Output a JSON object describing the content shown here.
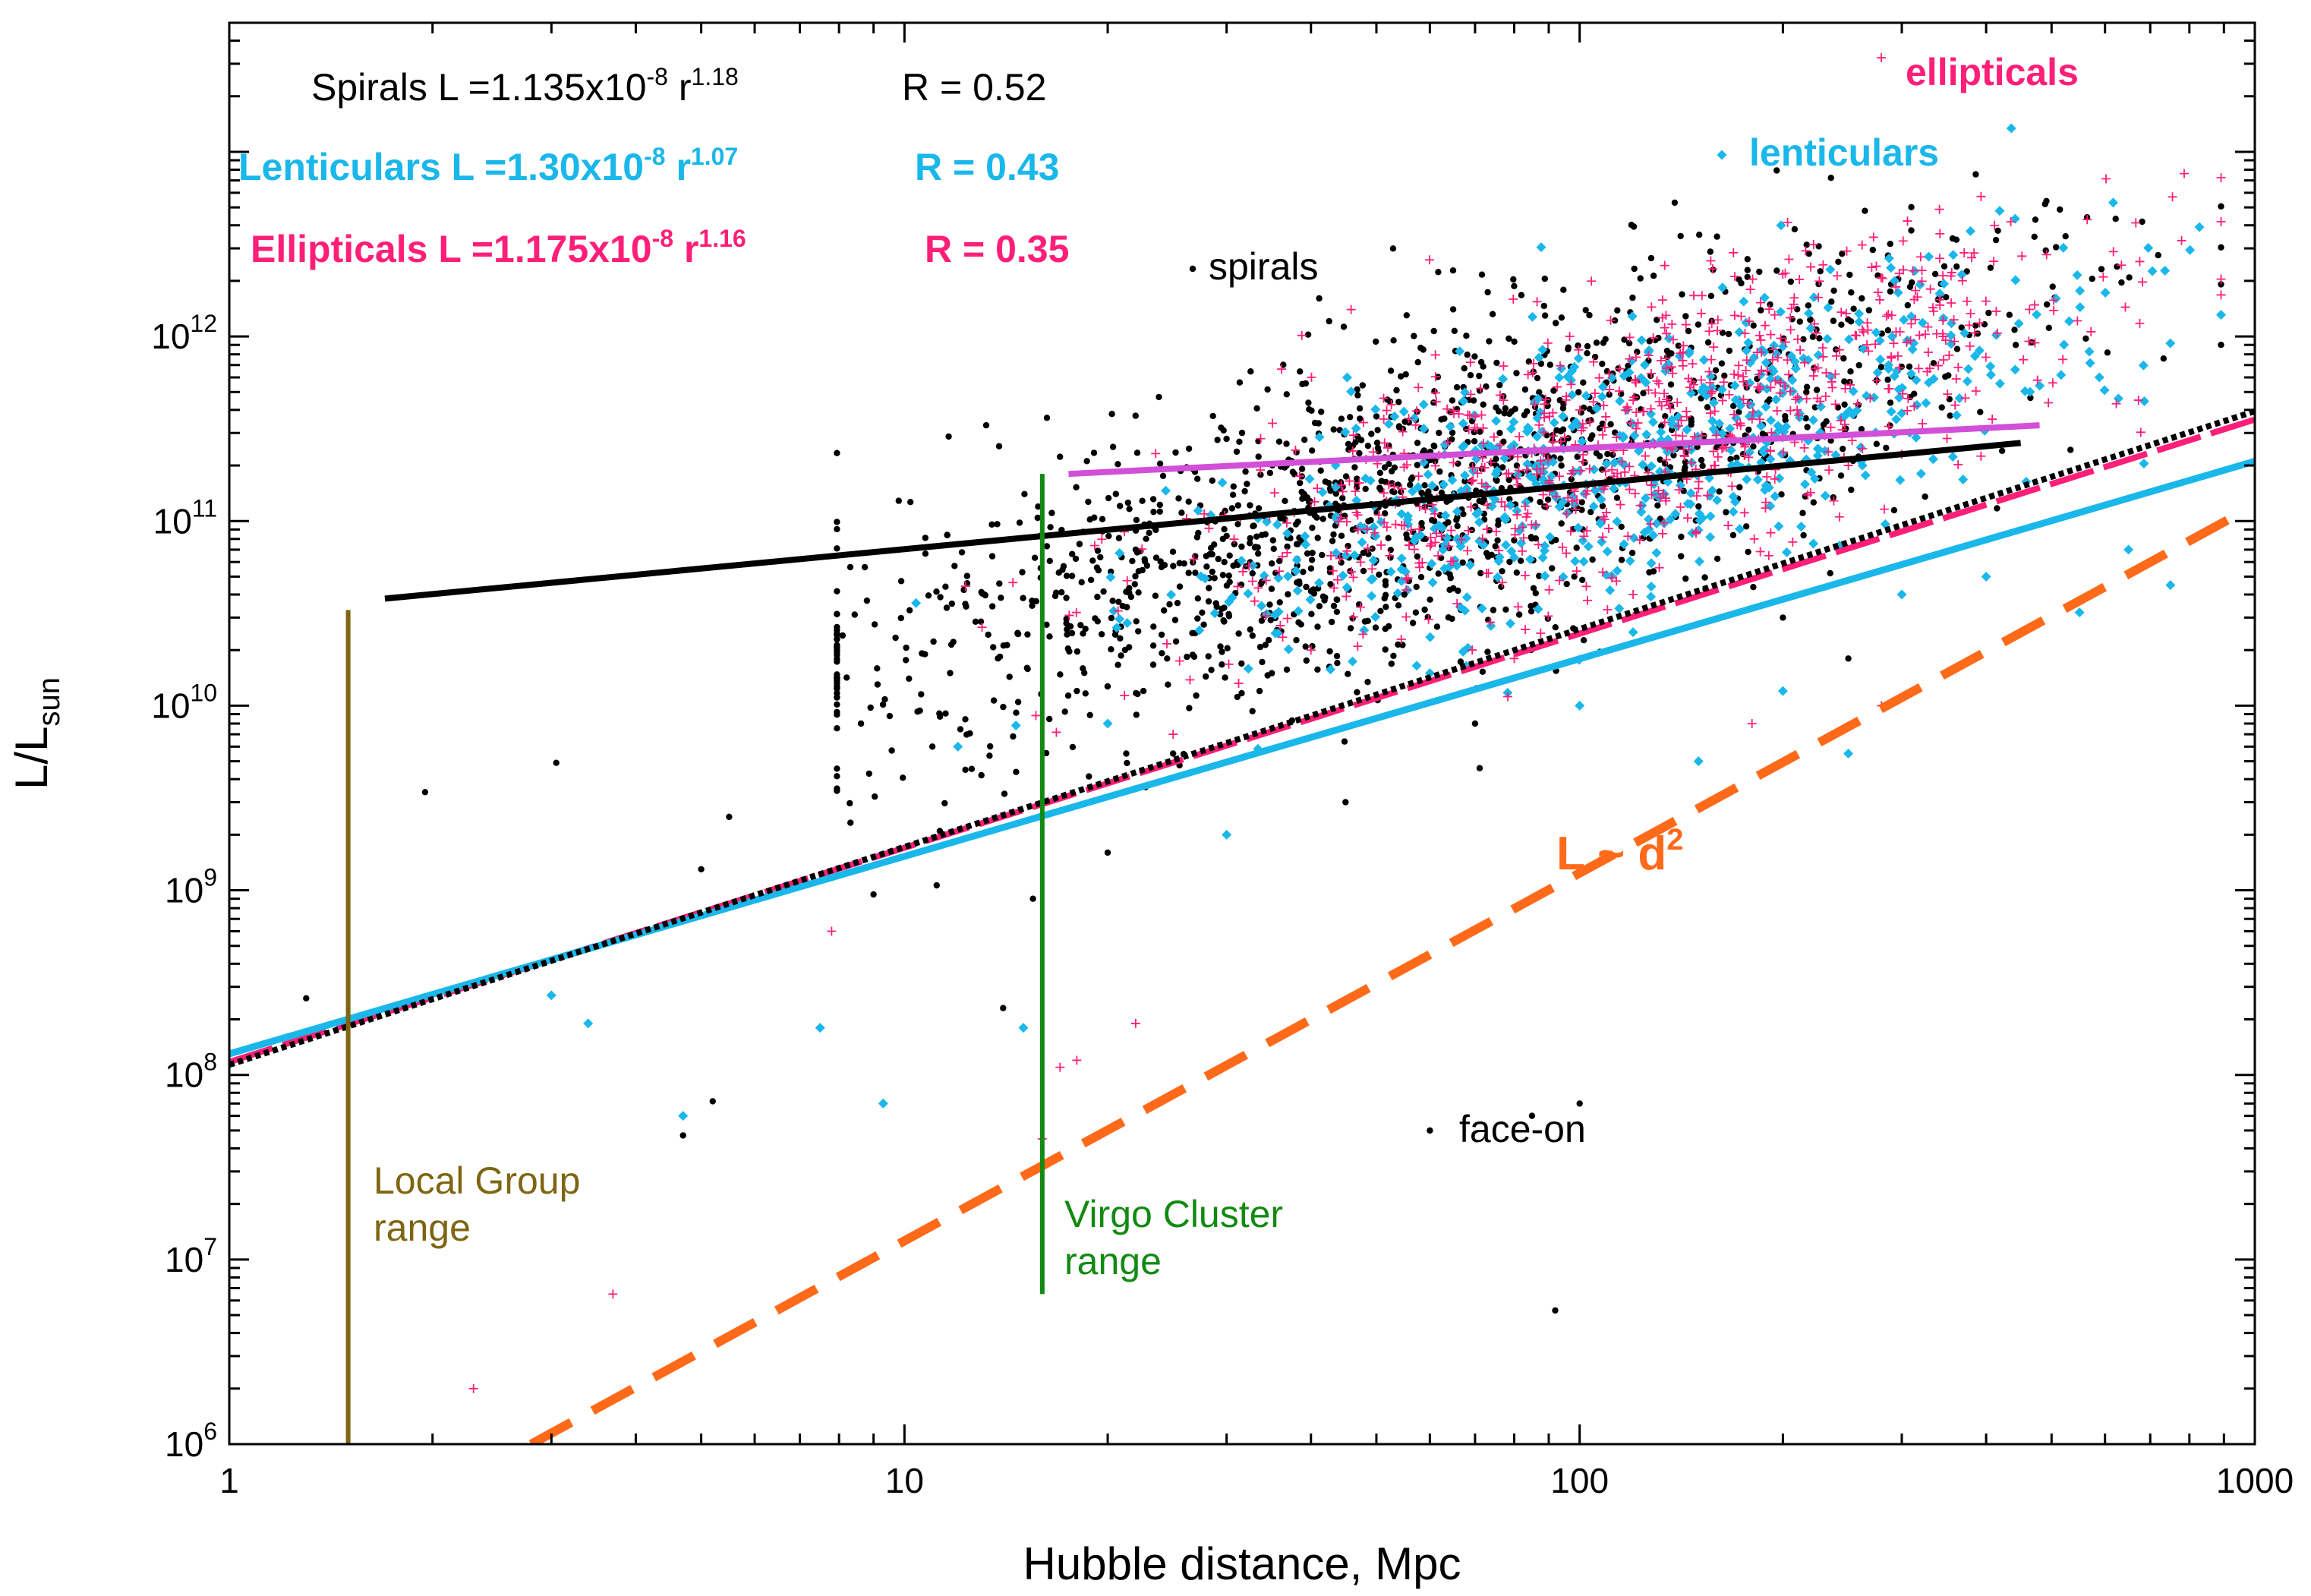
{
  "chart_data": {
    "type": "scatter",
    "x_scale": "log",
    "y_scale": "log",
    "xlim": [
      1,
      1000
    ],
    "ylim": [
      1000000,
      50000000000000
    ],
    "xlabel": "Hubble distance, Mpc",
    "ylabel": {
      "main": "L/L",
      "sub": "sun"
    },
    "x_ticks": [
      {
        "value": 1,
        "label": "1"
      },
      {
        "value": 10,
        "label": "10"
      },
      {
        "value": 100,
        "label": "100"
      },
      {
        "value": 1000,
        "label": "1000"
      }
    ],
    "y_ticks": [
      {
        "value": 1000000,
        "base": "10",
        "exp": "6"
      },
      {
        "value": 10000000,
        "base": "10",
        "exp": "7"
      },
      {
        "value": 100000000,
        "base": "10",
        "exp": "8"
      },
      {
        "value": 1000000000,
        "base": "10",
        "exp": "9"
      },
      {
        "value": 10000000000,
        "base": "10",
        "exp": "10"
      },
      {
        "value": 100000000000,
        "base": "10",
        "exp": "11"
      },
      {
        "value": 1000000000000,
        "base": "10",
        "exp": "12"
      }
    ],
    "fits": [
      {
        "name": "Spirals",
        "label_pre": "Spirals L =1.135x10",
        "label_exp1": "-8",
        "label_mid": " r",
        "label_exp2": "1.18",
        "r_text": "R = 0.52",
        "a": 1.135e-08,
        "b": 1.18,
        "color": "#000000",
        "dash": "7,5",
        "width": 8
      },
      {
        "name": "Lenticulars",
        "label_pre": "Lenticulars L =1.30x10",
        "label_exp1": "-8",
        "label_mid": " r",
        "label_exp2": "1.07",
        "r_text": "R = 0.43",
        "a": 1.3e-08,
        "b": 1.07,
        "color": "#1ab7ea",
        "dash": "",
        "width": 9
      },
      {
        "name": "Ellipticals",
        "label_pre": "Ellipticals L =1.175x10",
        "label_exp1": "-8",
        "label_mid": " r",
        "label_exp2": "1.16",
        "r_text": "R = 0.35",
        "a": 1.175e-08,
        "b": 1.16,
        "color": "#ff1f78",
        "dash": "60,14",
        "width": 8
      }
    ],
    "reference_line": {
      "label": "L ~ d",
      "label_sup": "2",
      "points": [
        [
          2.8,
          1000000
        ],
        [
          950,
          110000000000
        ]
      ],
      "color": "#ff6a1a"
    },
    "upper_limits": [
      {
        "name": "spirals",
        "points": [
          [
            1.7,
            38000000000
          ],
          [
            450,
            265000000000
          ]
        ],
        "color": "#000000"
      },
      {
        "name": "ellipticals",
        "points": [
          [
            17.5,
            180000000000
          ],
          [
            480,
            330000000000
          ]
        ],
        "color": "#d24fd8"
      }
    ],
    "markers": [
      {
        "name": "Local Group",
        "label_lines": [
          "Local Group",
          "range"
        ],
        "x": 1.5,
        "y_range": [
          1000000,
          33000000000
        ],
        "color": "#7e6511"
      },
      {
        "name": "Virgo Cluster",
        "label_lines": [
          "Virgo Cluster",
          "range"
        ],
        "x": 16,
        "y_range": [
          6500000,
          180000000000
        ],
        "color": "#128a12"
      }
    ],
    "legend": {
      "placement": "top-right",
      "items": [
        {
          "label": "ellipticals",
          "symbol": "+",
          "color": "#ff1f78"
        },
        {
          "label": "lenticulars",
          "symbol": "diamond",
          "color": "#1ab7ea"
        },
        {
          "label": "spirals",
          "symbol": "dot",
          "color": "#000000"
        }
      ]
    },
    "annotations": [
      {
        "text": "face-on",
        "x": 100,
        "y": 40000000
      }
    ],
    "series": [
      {
        "name": "spirals",
        "symbol": "dot",
        "color": "#000000",
        "points": [
          [
            1.3,
            260000000
          ],
          [
            1.95,
            3400000000
          ],
          [
            3.05,
            4900000000
          ],
          [
            5.2,
            72000000
          ],
          [
            4.7,
            47000000
          ],
          [
            8.1,
            24000000000
          ],
          [
            5.5,
            2500000000
          ],
          [
            5,
            1300000000
          ],
          [
            9,
            950000000
          ],
          [
            11,
            6000000000
          ],
          [
            13,
            4200000000
          ],
          [
            15.5,
            900000000
          ],
          [
            14,
            230000000
          ],
          [
            20,
            1600000000
          ],
          [
            25,
            5500000000
          ],
          [
            18,
            12000000000
          ],
          [
            22,
            70000000000
          ],
          [
            30,
            83000000000
          ],
          [
            38,
            96000000000
          ],
          [
            60,
            50000000
          ],
          [
            85,
            60000000
          ],
          [
            100,
            70000000
          ],
          [
            92,
            5300000
          ],
          [
            120,
            25000000000
          ],
          [
            150,
            120000000000
          ],
          [
            200,
            30000000000
          ],
          [
            250,
            18000000000
          ],
          [
            70,
            8000000000
          ],
          [
            45,
            3000000000
          ],
          [
            35,
            15000000000
          ],
          [
            55,
            40000000000
          ]
        ]
      },
      {
        "name": "lenticulars",
        "symbol": "diamond",
        "color": "#1ab7ea",
        "points": [
          [
            3,
            270000000
          ],
          [
            3.4,
            190000000
          ],
          [
            4.7,
            60000000
          ],
          [
            7.5,
            180000000
          ],
          [
            9.3,
            70000000
          ],
          [
            12,
            6000000000
          ],
          [
            15,
            180000000
          ],
          [
            20,
            8000000000
          ],
          [
            30,
            2000000000
          ],
          [
            60,
            15000000000
          ],
          [
            100,
            10000000000
          ],
          [
            150,
            5000000000
          ],
          [
            200,
            12000000000
          ],
          [
            300,
            40000000000
          ],
          [
            400,
            50000000000
          ],
          [
            550,
            32000000000
          ],
          [
            650,
            70000000000
          ],
          [
            750,
            45000000000
          ],
          [
            250,
            5500000000
          ],
          [
            120,
            25000000000
          ]
        ]
      },
      {
        "name": "ellipticals",
        "symbol": "plus",
        "color": "#ff1f78",
        "points": [
          [
            2.3,
            2000000
          ],
          [
            3.7,
            6500000
          ],
          [
            7.8,
            600000000
          ],
          [
            17,
            110000000
          ],
          [
            16,
            45000000
          ],
          [
            18,
            120000000
          ],
          [
            22,
            190000000
          ],
          [
            25,
            7000000000
          ],
          [
            40,
            20000000000
          ],
          [
            80,
            18000000000
          ],
          [
            120,
            40000000000
          ],
          [
            150,
            150000000000
          ],
          [
            210,
            400000000000
          ],
          [
            250,
            200000000000
          ],
          [
            300,
            230000000000
          ],
          [
            350,
            280000000000
          ],
          [
            280,
            10000000000
          ],
          [
            180,
            8000000000
          ]
        ]
      }
    ],
    "cloud_spec": {
      "spirals": {
        "count": 1500,
        "a": 1.135e-08,
        "b": 1.18,
        "center": 55,
        "spread": 0.45,
        "scatter": 0.42
      },
      "lenticulars": {
        "count": 650,
        "a": 1.3e-08,
        "b": 1.07,
        "center": 120,
        "spread": 0.32,
        "scatter": 0.36
      },
      "ellipticals": {
        "count": 800,
        "a": 1.175e-08,
        "b": 1.16,
        "center": 130,
        "spread": 0.34,
        "scatter": 0.36
      }
    }
  }
}
